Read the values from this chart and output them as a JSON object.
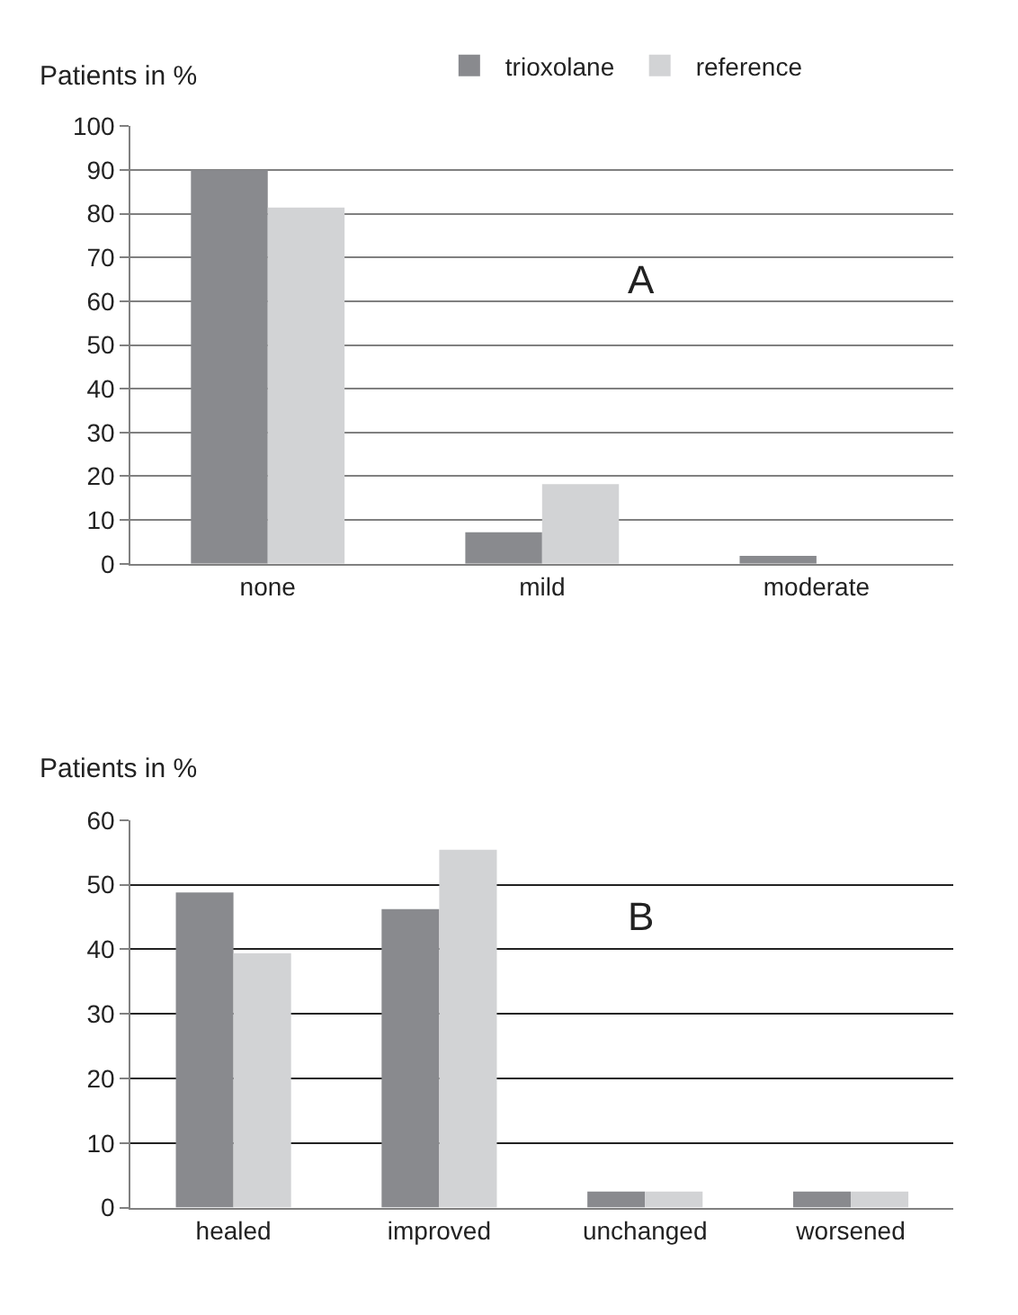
{
  "chart_data": [
    {
      "type": "bar",
      "ylabel": "Patients in %",
      "categories": [
        "none",
        "mild",
        "moderate"
      ],
      "series": [
        {
          "name": "trioxolane",
          "color": "#898a8e",
          "values": [
            90,
            7.2,
            1.8
          ]
        },
        {
          "name": "reference",
          "color": "#d2d3d5",
          "values": [
            81.4,
            18.2,
            0
          ]
        }
      ],
      "ylim": [
        0,
        100
      ],
      "yticks": [
        0,
        10,
        20,
        30,
        40,
        50,
        60,
        70,
        80,
        90,
        100
      ],
      "grid": "y",
      "legend": "top",
      "annotations": [
        "A"
      ]
    },
    {
      "type": "bar",
      "ylabel": "Patients in %",
      "categories": [
        "healed",
        "improved",
        "unchanged",
        "worsened"
      ],
      "series": [
        {
          "color": "#898a8e",
          "values": [
            48.8,
            46.2,
            2.5,
            2.5
          ]
        },
        {
          "color": "#d2d3d5",
          "values": [
            39.4,
            55.4,
            2.5,
            2.5
          ]
        }
      ],
      "ylim": [
        0,
        60
      ],
      "yticks": [
        0,
        10,
        20,
        30,
        40,
        50,
        60
      ],
      "grid": "y",
      "annotations": [
        "B"
      ]
    }
  ]
}
